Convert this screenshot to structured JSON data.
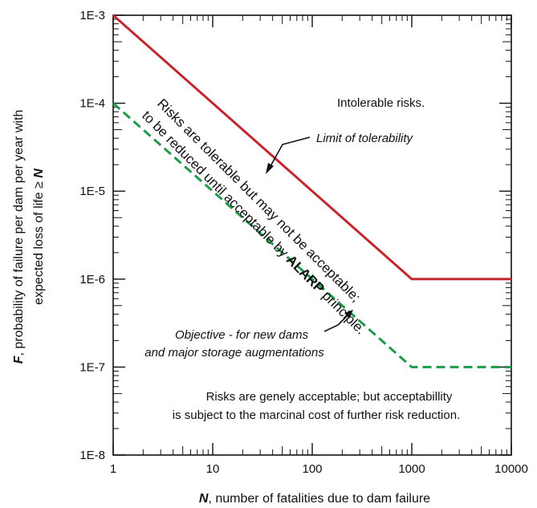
{
  "chart_data": {
    "type": "line",
    "x_scale": "log",
    "y_scale": "log",
    "xlim": [
      1,
      10000
    ],
    "ylim": [
      1e-08,
      0.001
    ],
    "x_ticks": [
      1,
      10,
      100,
      1000,
      10000
    ],
    "x_tick_labels": [
      "1",
      "10",
      "100",
      "1000",
      "10000"
    ],
    "y_ticks": [
      0.001,
      0.0001,
      1e-05,
      1e-06,
      1e-07,
      1e-08
    ],
    "y_tick_labels": [
      "1E-3",
      "1E-4",
      "1E-5",
      "1E-6",
      "1E-7",
      "1E-8"
    ],
    "xlabel_bold": "N",
    "xlabel_rest": ", number of fatalities due to dam failure",
    "ylabel_line1_bold": "F",
    "ylabel_line1_rest": ", probability of failure per dam per year with",
    "ylabel_line2_rest": "expected loss of life ≥ ",
    "ylabel_line2_bold": "N",
    "grid": false,
    "series": [
      {
        "style": "solid",
        "color": "#c0282d",
        "x": [
          1,
          1000,
          10000
        ],
        "y": [
          0.001,
          1e-06,
          1e-06
        ]
      },
      {
        "style": "dashed",
        "color": "#1f9a4a",
        "x": [
          1,
          1000,
          10000
        ],
        "y": [
          0.0001,
          1e-07,
          1e-07
        ]
      }
    ],
    "annotations": {
      "intolerable": "Intolerable risks.",
      "limit": "Limit of tolerability",
      "diagonal_line1_pre": "Risks are tolerable but may not be acceptable;",
      "diagonal_line2_pre": "to be reduced until acceptable by ",
      "diagonal_line2_bold": "ALARP",
      "diagonal_line2_post": " principle.",
      "objective_line1": "Objective - for new dams",
      "objective_line2": "and major storage augmentations",
      "acceptable_line1": "Risks are genely acceptable; but acceptabillity",
      "acceptable_line2": "is subject to the marcinal cost of further risk reduction."
    }
  }
}
